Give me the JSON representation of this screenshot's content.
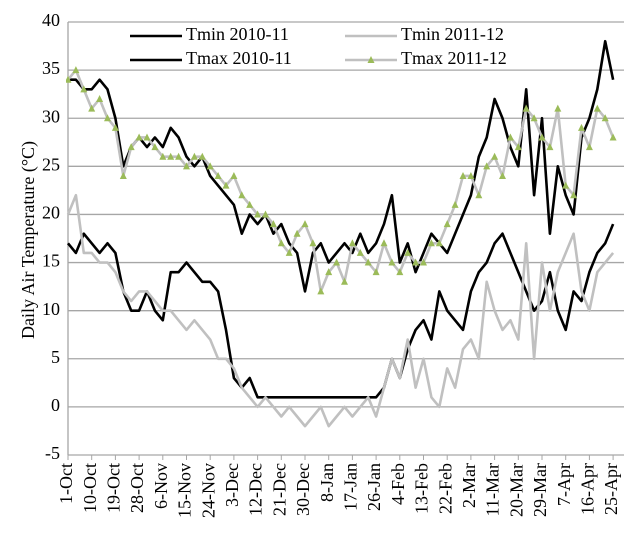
{
  "chart_data": {
    "type": "line",
    "y_label": "Daily Air Temperature (°C)",
    "categories": [
      "1-Oct",
      null,
      null,
      "10-Oct",
      null,
      null,
      "19-Oct",
      null,
      null,
      "28-Oct",
      null,
      null,
      "6-Nov",
      null,
      null,
      "15-Nov",
      null,
      null,
      "24-Nov",
      null,
      null,
      "3-Dec",
      null,
      null,
      "12-Dec",
      null,
      null,
      "21-Dec",
      null,
      null,
      "30-Dec",
      null,
      null,
      "8-Jan",
      null,
      null,
      "17-Jan",
      null,
      null,
      "26-Jan",
      null,
      null,
      "4-Feb",
      null,
      null,
      "13-Feb",
      null,
      null,
      "22-Feb",
      null,
      null,
      "2-Mar",
      null,
      null,
      "11-Mar",
      null,
      null,
      "20-Mar",
      null,
      null,
      "29-Mar",
      null,
      null,
      "7-Apr",
      null,
      null,
      "16-Apr",
      null,
      null,
      "25-Apr"
    ],
    "ylim": [
      -5,
      40
    ],
    "yticks": [
      -5,
      0,
      5,
      10,
      15,
      20,
      25,
      30,
      35,
      40
    ],
    "grid": true,
    "series": [
      {
        "name": "Tmin 2010-11",
        "color": "#000000",
        "values": [
          17,
          16,
          18,
          17,
          16,
          17,
          16,
          12,
          10,
          10,
          12,
          10,
          9,
          14,
          14,
          15,
          14,
          13,
          13,
          12,
          8,
          3,
          2,
          3,
          1,
          1,
          1,
          1,
          1,
          1,
          1,
          1,
          1,
          1,
          1,
          1,
          1,
          1,
          1,
          1,
          2,
          5,
          3,
          6,
          8,
          9,
          7,
          12,
          10,
          9,
          8,
          12,
          14,
          15,
          17,
          18,
          16,
          14,
          12,
          10,
          11,
          14,
          10,
          8,
          12,
          11,
          14,
          16,
          17,
          19
        ]
      },
      {
        "name": "Tmin 2011-12",
        "color": "#c0c0c0",
        "values": [
          20,
          22,
          16,
          16,
          15,
          15,
          14,
          12,
          11,
          12,
          12,
          11,
          10,
          10,
          9,
          8,
          9,
          8,
          7,
          5,
          5,
          4,
          2,
          1,
          0,
          1,
          0,
          -1,
          0,
          -1,
          -2,
          -1,
          0,
          -2,
          -1,
          0,
          -1,
          0,
          1,
          -1,
          2,
          5,
          3,
          7,
          2,
          5,
          1,
          0,
          4,
          2,
          6,
          7,
          5,
          13,
          10,
          8,
          9,
          7,
          17,
          5,
          15,
          10,
          14,
          16,
          18,
          12,
          10,
          14,
          15,
          16
        ]
      },
      {
        "name": "Tmax 2010-11",
        "color": "#000000",
        "values": [
          34,
          34,
          33,
          33,
          34,
          33,
          30,
          25,
          27,
          28,
          27,
          28,
          27,
          29,
          28,
          26,
          25,
          26,
          24,
          23,
          22,
          21,
          18,
          20,
          19,
          20,
          18,
          19,
          17,
          16,
          12,
          16,
          17,
          15,
          16,
          17,
          16,
          18,
          16,
          17,
          19,
          22,
          15,
          17,
          14,
          16,
          18,
          17,
          16,
          18,
          20,
          22,
          26,
          28,
          32,
          30,
          27,
          25,
          33,
          22,
          30,
          18,
          25,
          22,
          20,
          28,
          30,
          33,
          38,
          34
        ]
      },
      {
        "name": "Tmax 2011-12",
        "color": "#c0c0c0",
        "marker": "triangle",
        "marker_color": "#9bbb59",
        "values": [
          34,
          35,
          33,
          31,
          32,
          30,
          29,
          24,
          27,
          28,
          28,
          27,
          26,
          26,
          26,
          25,
          26,
          26,
          25,
          24,
          23,
          24,
          22,
          21,
          20,
          20,
          19,
          17,
          16,
          18,
          19,
          17,
          12,
          14,
          15,
          13,
          17,
          16,
          15,
          14,
          17,
          15,
          14,
          16,
          15,
          15,
          17,
          17,
          19,
          21,
          24,
          24,
          22,
          25,
          26,
          24,
          28,
          27,
          31,
          30,
          28,
          27,
          31,
          23,
          22,
          29,
          27,
          31,
          30,
          28
        ]
      }
    ]
  }
}
